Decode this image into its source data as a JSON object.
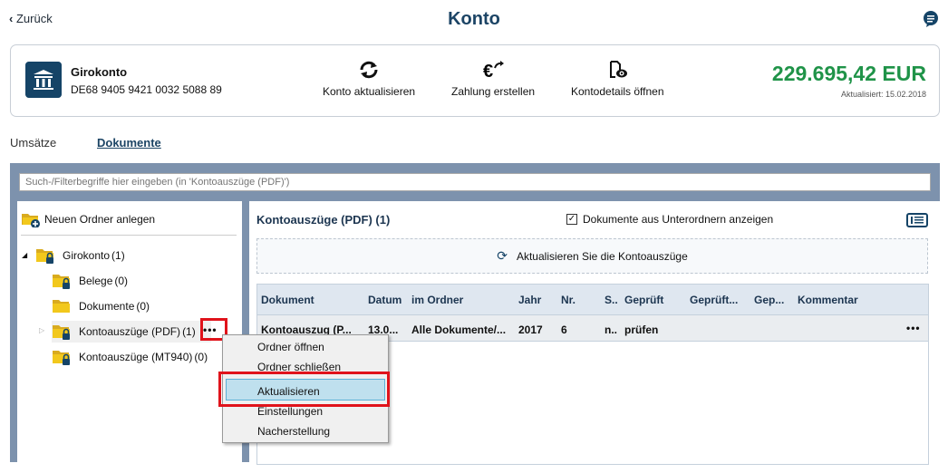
{
  "header": {
    "back_label": "Zurück",
    "title": "Konto"
  },
  "account": {
    "name": "Girokonto",
    "iban": "DE68 9405 9421 0032 5088 89",
    "actions": [
      "Konto aktualisieren",
      "Zahlung erstellen",
      "Kontodetails öffnen"
    ],
    "balance": "229.695,42 EUR",
    "updated": "Aktualisiert: 15.02.2018",
    "balance_color": "#1f9348"
  },
  "tabs": [
    {
      "label": "Umsätze"
    },
    {
      "label": "Dokumente",
      "active": true
    }
  ],
  "search": {
    "placeholder": "Such-/Filterbegriffe hier eingeben (in 'Kontoauszüge (PDF)')"
  },
  "tree": {
    "new_folder": "Neuen Ordner anlegen",
    "items": [
      {
        "label": "Girokonto",
        "count": "(1)"
      },
      {
        "label": "Belege",
        "count": "(0)"
      },
      {
        "label": "Dokumente",
        "count": "(0)"
      },
      {
        "label": "Kontoauszüge (PDF)",
        "count": "(1)",
        "more": "•••"
      },
      {
        "label": "Kontoauszüge (MT940)",
        "count": "(0)"
      }
    ]
  },
  "main": {
    "title": "Kontoauszüge (PDF) (1)",
    "subfolder_checkbox": "Dokumente aus Unterordnern anzeigen",
    "subfolder_checked": true,
    "refresh_label": "Aktualisieren Sie die Kontoauszüge",
    "columns": [
      "Dokument",
      "Datum",
      "im Ordner",
      "Jahr",
      "Nr.",
      "S..",
      "Geprüft",
      "Geprüft...",
      "Gep...",
      "Kommentar"
    ],
    "rows": [
      [
        "Kontoauszug (P...",
        "13.0...",
        "Alle Dokumente/...",
        "2017",
        "6",
        "n..",
        "prüfen",
        "",
        "",
        ""
      ]
    ],
    "row_more": "•••"
  },
  "context_menu": {
    "items": [
      "Ordner öffnen",
      "Ordner schließen",
      "Aktualisieren",
      "Einstellungen",
      "Nacherstellung"
    ],
    "highlighted": "Aktualisieren"
  }
}
